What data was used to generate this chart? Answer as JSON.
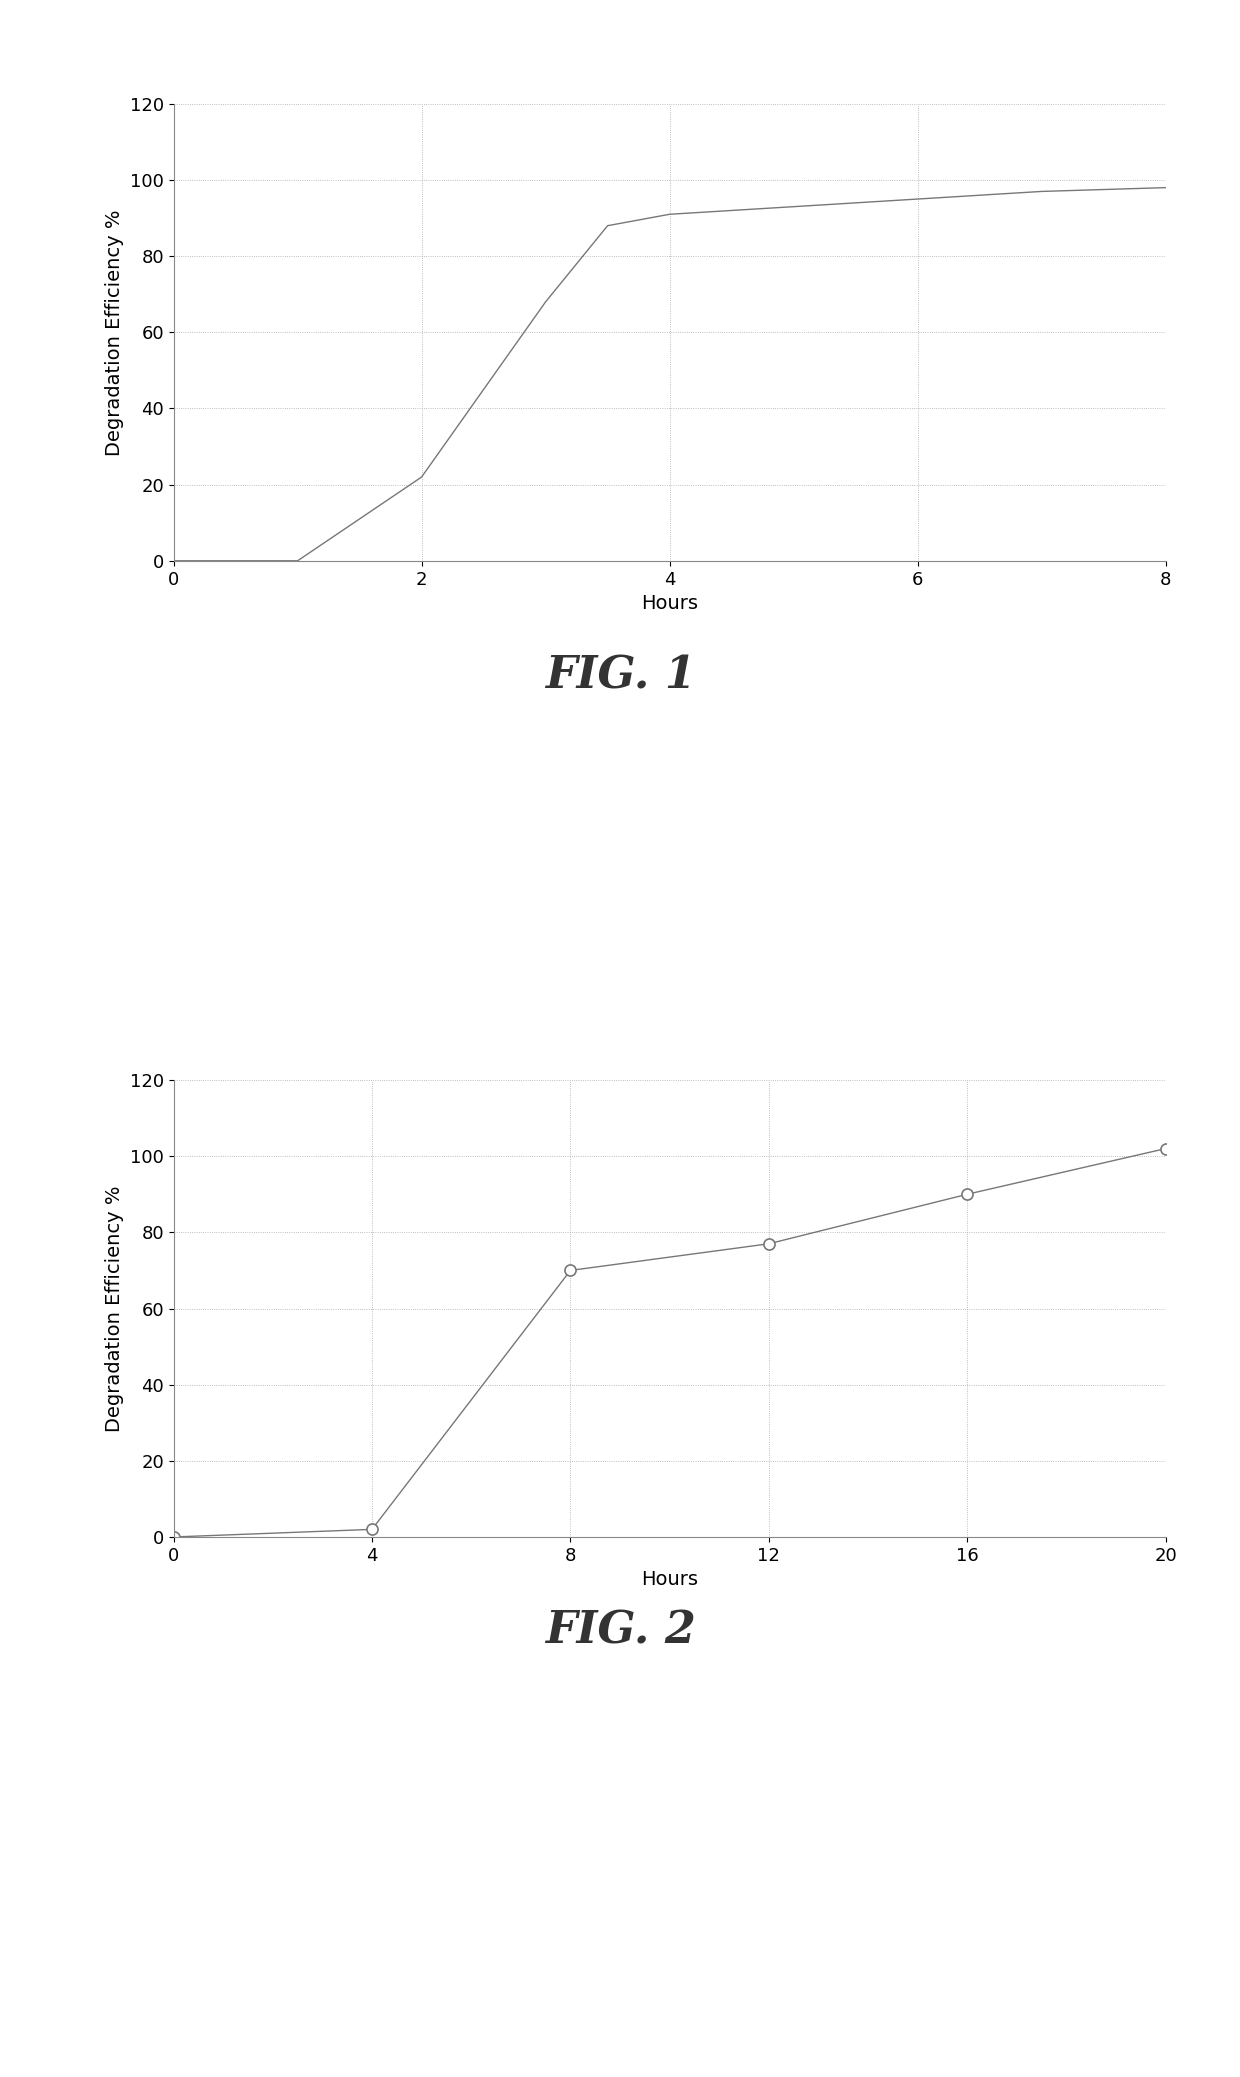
{
  "fig1": {
    "x": [
      0,
      1,
      2,
      3,
      3.5,
      4,
      5,
      6,
      7,
      8
    ],
    "y": [
      0,
      0,
      22,
      68,
      88,
      91,
      93,
      95,
      97,
      98
    ],
    "xlabel": "Hours",
    "ylabel": "Degradation Efficiency %",
    "xlim": [
      0,
      8
    ],
    "ylim": [
      0,
      120
    ],
    "xticks": [
      0,
      2,
      4,
      6,
      8
    ],
    "yticks": [
      0,
      20,
      40,
      60,
      80,
      100,
      120
    ],
    "caption": "FIG. 1",
    "line_color": "#777777",
    "marker": null
  },
  "fig2": {
    "x": [
      0,
      4,
      8,
      12,
      16,
      20
    ],
    "y": [
      0,
      2,
      70,
      77,
      90,
      102
    ],
    "xlabel": "Hours",
    "ylabel": "Degradation Efficiency %",
    "xlim": [
      0,
      20
    ],
    "ylim": [
      0,
      120
    ],
    "xticks": [
      0,
      4,
      8,
      12,
      16,
      20
    ],
    "yticks": [
      0,
      20,
      40,
      60,
      80,
      100,
      120
    ],
    "caption": "FIG. 2",
    "line_color": "#777777",
    "marker": "o"
  },
  "background_color": "#ffffff",
  "caption_fontsize": 32,
  "axis_label_fontsize": 14,
  "tick_fontsize": 13
}
